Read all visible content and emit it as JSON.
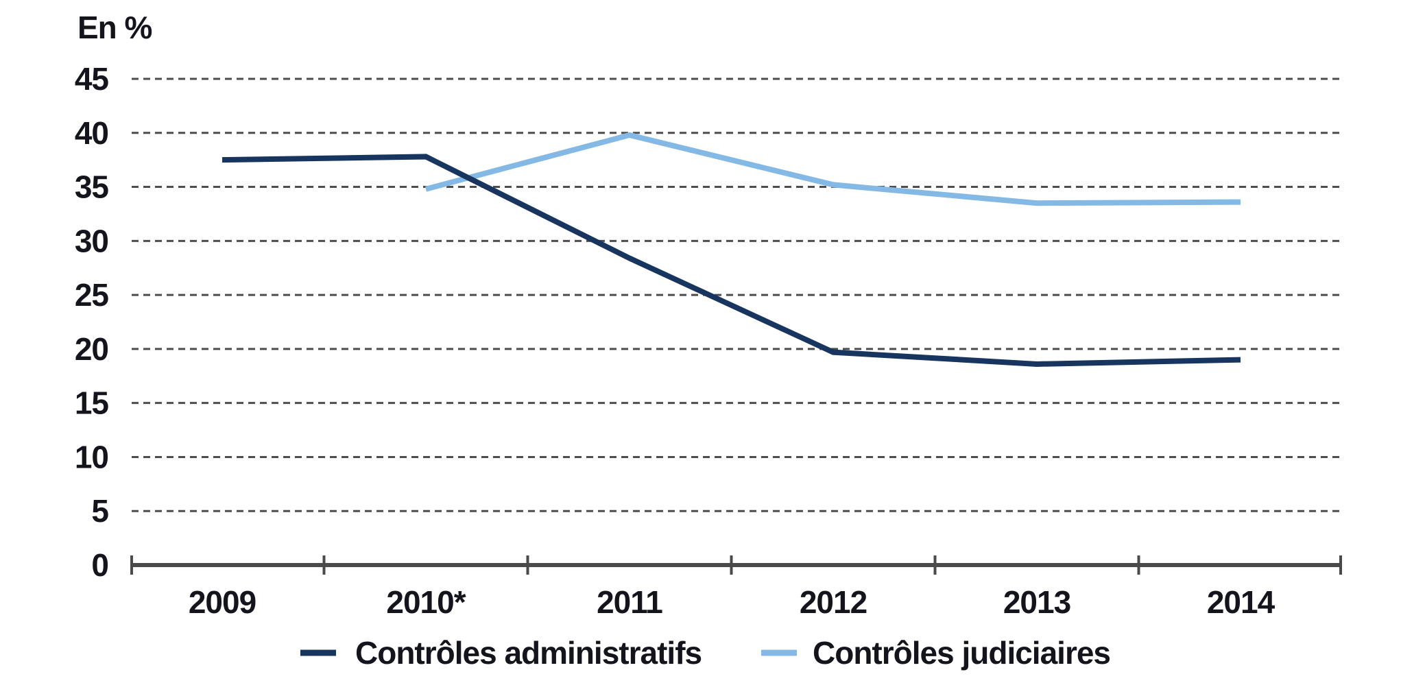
{
  "chart_data": {
    "type": "line",
    "title": "",
    "ylabel": "En %",
    "xlabel": "",
    "categories": [
      "2009",
      "2010*",
      "2011",
      "2012",
      "2013",
      "2014"
    ],
    "yticks": [
      0,
      5,
      10,
      15,
      20,
      25,
      30,
      35,
      40,
      45
    ],
    "ylim": [
      0,
      45
    ],
    "grid": "horizontal-dashed",
    "legend_position": "bottom",
    "series": [
      {
        "name": "Contrôles administratifs",
        "color": "#17355f",
        "values": [
          37.5,
          37.8,
          28.4,
          19.7,
          18.6,
          19.0
        ]
      },
      {
        "name": "Contrôles judiciaires",
        "color": "#84b9e5",
        "values": [
          null,
          34.8,
          39.8,
          35.2,
          33.5,
          33.6
        ]
      }
    ]
  }
}
